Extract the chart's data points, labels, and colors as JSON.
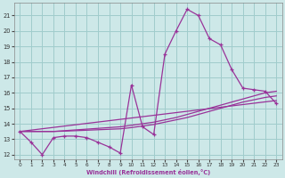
{
  "xlabel": "Windchill (Refroidissement éolien,°C)",
  "bg_color": "#cde8e8",
  "grid_color": "#a0cccc",
  "line_color": "#993399",
  "xlim": [
    -0.5,
    23.5
  ],
  "ylim": [
    11.7,
    21.8
  ],
  "xticks": [
    0,
    1,
    2,
    3,
    4,
    5,
    6,
    7,
    8,
    9,
    10,
    11,
    12,
    13,
    14,
    15,
    16,
    17,
    18,
    19,
    20,
    21,
    22,
    23
  ],
  "yticks": [
    12,
    13,
    14,
    15,
    16,
    17,
    18,
    19,
    20,
    21
  ],
  "series1_x": [
    0,
    1,
    2,
    3,
    4,
    5,
    6,
    7,
    8,
    9,
    10,
    11,
    12,
    13,
    14,
    15,
    16,
    17,
    18,
    19,
    20,
    21,
    22,
    23
  ],
  "series1_y": [
    13.5,
    12.8,
    12.0,
    13.1,
    13.2,
    13.2,
    13.1,
    12.8,
    12.5,
    12.1,
    16.5,
    13.8,
    13.3,
    18.5,
    20.0,
    21.4,
    21.0,
    19.5,
    19.1,
    17.5,
    16.3,
    16.2,
    16.1,
    15.3
  ],
  "series2_x": [
    0,
    1,
    2,
    3,
    4,
    5,
    6,
    7,
    8,
    9,
    10,
    11,
    12,
    13,
    14,
    15,
    16,
    17,
    18,
    19,
    20,
    21,
    22,
    23
  ],
  "series2_y": [
    13.5,
    13.5,
    13.5,
    13.5,
    13.55,
    13.6,
    13.65,
    13.7,
    13.75,
    13.8,
    13.9,
    14.0,
    14.1,
    14.25,
    14.4,
    14.6,
    14.8,
    15.0,
    15.2,
    15.4,
    15.6,
    15.8,
    16.0,
    16.1
  ],
  "series3_x": [
    0,
    1,
    2,
    3,
    4,
    5,
    6,
    7,
    8,
    9,
    10,
    11,
    12,
    13,
    14,
    15,
    16,
    17,
    18,
    19,
    20,
    21,
    22,
    23
  ],
  "series3_y": [
    13.5,
    13.5,
    13.5,
    13.5,
    13.52,
    13.55,
    13.58,
    13.61,
    13.64,
    13.67,
    13.75,
    13.85,
    13.95,
    14.1,
    14.25,
    14.4,
    14.6,
    14.8,
    15.0,
    15.2,
    15.4,
    15.55,
    15.7,
    15.8
  ],
  "series4_x": [
    0,
    23
  ],
  "series4_y": [
    13.5,
    15.5
  ]
}
